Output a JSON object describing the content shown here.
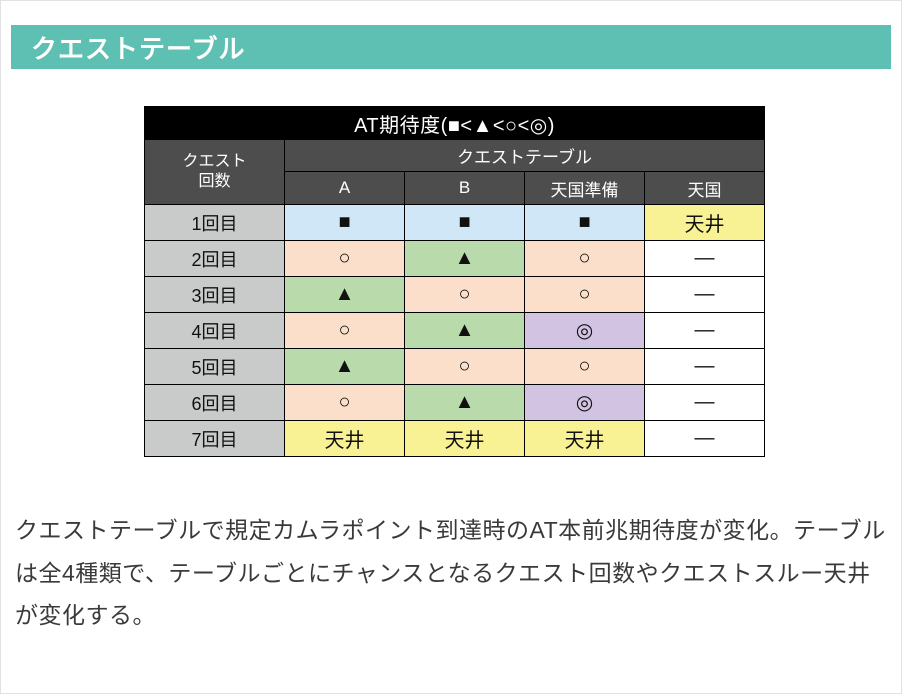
{
  "page": {
    "section_title": "クエストテーブル"
  },
  "colors": {
    "accent_teal": "#5ec0b2",
    "table_title_bg": "#000000",
    "table_header_bg": "#4d4d4d",
    "row_label_bg": "#c9caca",
    "cell_blue": "#cfe7f6",
    "cell_peach": "#fbdfca",
    "cell_green": "#b9daab",
    "cell_purple": "#d2c3e2",
    "cell_yellow": "#f8f295",
    "cell_white": "#ffffff"
  },
  "table": {
    "title": "AT期待度(■<▲<○<◎)",
    "row_header_label": "クエスト\n回数",
    "group_header": "クエストテーブル",
    "columns": [
      "A",
      "B",
      "天国準備",
      "天国"
    ],
    "rows": [
      {
        "label": "1回目",
        "cells": [
          {
            "text": "■",
            "bg": "blue"
          },
          {
            "text": "■",
            "bg": "blue"
          },
          {
            "text": "■",
            "bg": "blue"
          },
          {
            "text": "天井",
            "bg": "yellow"
          }
        ]
      },
      {
        "label": "2回目",
        "cells": [
          {
            "text": "○",
            "bg": "peach"
          },
          {
            "text": "▲",
            "bg": "green"
          },
          {
            "text": "○",
            "bg": "peach"
          },
          {
            "text": "―",
            "bg": "white"
          }
        ]
      },
      {
        "label": "3回目",
        "cells": [
          {
            "text": "▲",
            "bg": "green"
          },
          {
            "text": "○",
            "bg": "peach"
          },
          {
            "text": "○",
            "bg": "peach"
          },
          {
            "text": "―",
            "bg": "white"
          }
        ]
      },
      {
        "label": "4回目",
        "cells": [
          {
            "text": "○",
            "bg": "peach"
          },
          {
            "text": "▲",
            "bg": "green"
          },
          {
            "text": "◎",
            "bg": "purple"
          },
          {
            "text": "―",
            "bg": "white"
          }
        ]
      },
      {
        "label": "5回目",
        "cells": [
          {
            "text": "▲",
            "bg": "green"
          },
          {
            "text": "○",
            "bg": "peach"
          },
          {
            "text": "○",
            "bg": "peach"
          },
          {
            "text": "―",
            "bg": "white"
          }
        ]
      },
      {
        "label": "6回目",
        "cells": [
          {
            "text": "○",
            "bg": "peach"
          },
          {
            "text": "▲",
            "bg": "green"
          },
          {
            "text": "◎",
            "bg": "purple"
          },
          {
            "text": "―",
            "bg": "white"
          }
        ]
      },
      {
        "label": "7回目",
        "cells": [
          {
            "text": "天井",
            "bg": "yellow"
          },
          {
            "text": "天井",
            "bg": "yellow"
          },
          {
            "text": "天井",
            "bg": "yellow"
          },
          {
            "text": "―",
            "bg": "white"
          }
        ]
      }
    ]
  },
  "description": "クエストテーブルで規定カムラポイント到達時のAT本前兆期待度が変化。テーブルは全4種類で、テーブルごとにチャンスとなるクエスト回数やクエストスルー天井が変化する。"
}
